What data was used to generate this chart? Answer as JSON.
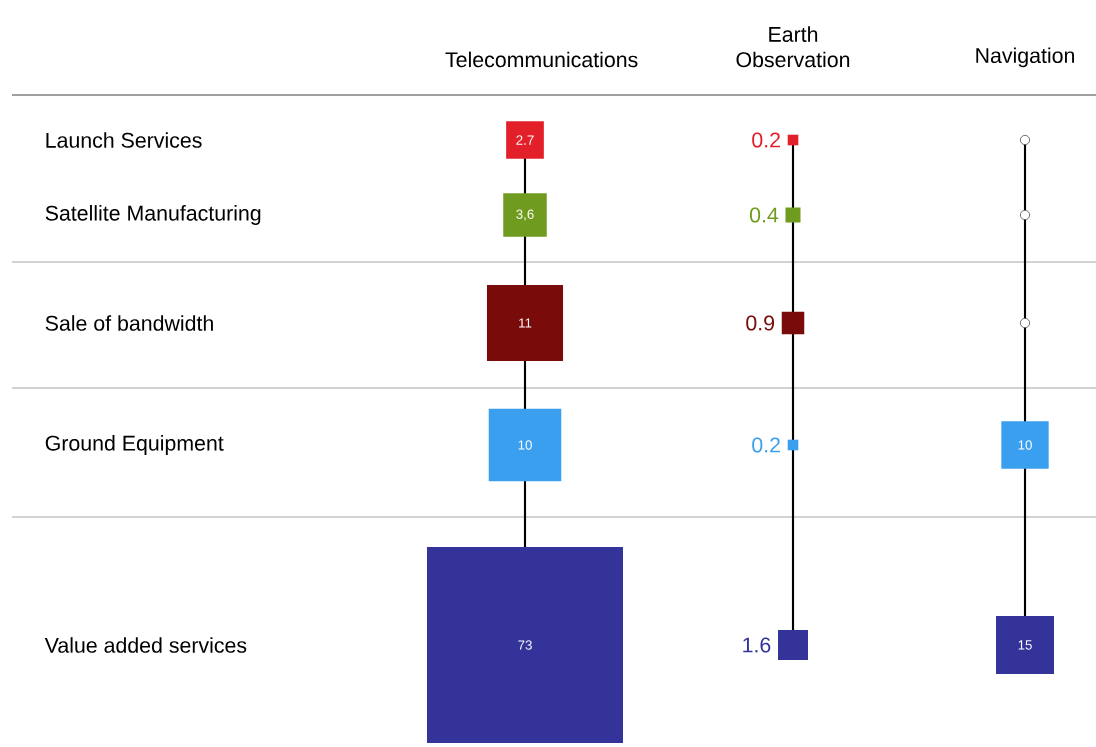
{
  "chart_data": {
    "type": "heatmap",
    "categories": [
      "Telecommunications",
      "Earth Observation",
      "Navigation"
    ],
    "y_categories": [
      "Launch Services",
      "Satellite Manufacturing",
      "Sale of bandwidth",
      "Ground Equipment",
      "Value added services"
    ],
    "cells": [
      [
        2.7,
        0.2,
        null
      ],
      [
        3.6,
        0.4,
        null
      ],
      [
        11,
        0.9,
        null
      ],
      [
        10,
        0.2,
        10
      ],
      [
        73,
        1.6,
        15
      ]
    ],
    "cell_labels": [
      [
        "2.7",
        "0.2",
        null
      ],
      [
        "3,6",
        "0.4",
        null
      ],
      [
        "11",
        "0.9",
        null
      ],
      [
        "10",
        "0.2",
        "10"
      ],
      [
        "73",
        "1.6",
        "15"
      ]
    ],
    "colors": [
      "#e3202a",
      "#6f9c1e",
      "#7a0b0b",
      "#3b9ff0",
      "#333399"
    ],
    "grid": true
  }
}
